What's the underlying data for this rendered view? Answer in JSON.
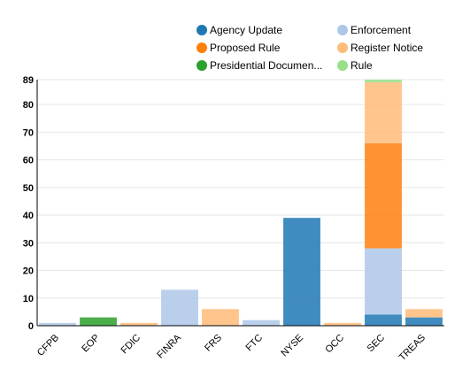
{
  "chart_data": {
    "type": "bar",
    "stacked": true,
    "categories": [
      "CFPB",
      "EOP",
      "FDIC",
      "FINRA",
      "FRS",
      "FTC",
      "NYSE",
      "OCC",
      "SEC",
      "TREAS"
    ],
    "series": [
      {
        "name": "Agency Update",
        "color": "#1f77b4",
        "values": [
          0,
          0,
          0,
          0,
          0,
          0,
          39,
          0,
          4,
          3
        ]
      },
      {
        "name": "Enforcement",
        "color": "#aec7e8",
        "values": [
          1,
          0,
          0,
          13,
          0,
          2,
          0,
          0,
          24,
          0
        ]
      },
      {
        "name": "Proposed Rule",
        "color": "#ff7f0e",
        "values": [
          0,
          0,
          0,
          0,
          0,
          0,
          0,
          0,
          38,
          0
        ]
      },
      {
        "name": "Register Notice",
        "color": "#ffbb78",
        "values": [
          0,
          0,
          1,
          0,
          6,
          0,
          0,
          1,
          22,
          3
        ]
      },
      {
        "name": "Presidential Documen...",
        "color": "#2ca02c",
        "values": [
          0,
          3,
          0,
          0,
          0,
          0,
          0,
          0,
          0,
          0
        ]
      },
      {
        "name": "Rule",
        "color": "#98df8a",
        "values": [
          0,
          0,
          0,
          0,
          0,
          0,
          0,
          0,
          1,
          0
        ]
      }
    ],
    "yticks": [
      0,
      10,
      20,
      30,
      40,
      50,
      60,
      70,
      80,
      89
    ],
    "ylim": [
      0,
      89
    ],
    "grid": true,
    "legend_position": "top"
  }
}
